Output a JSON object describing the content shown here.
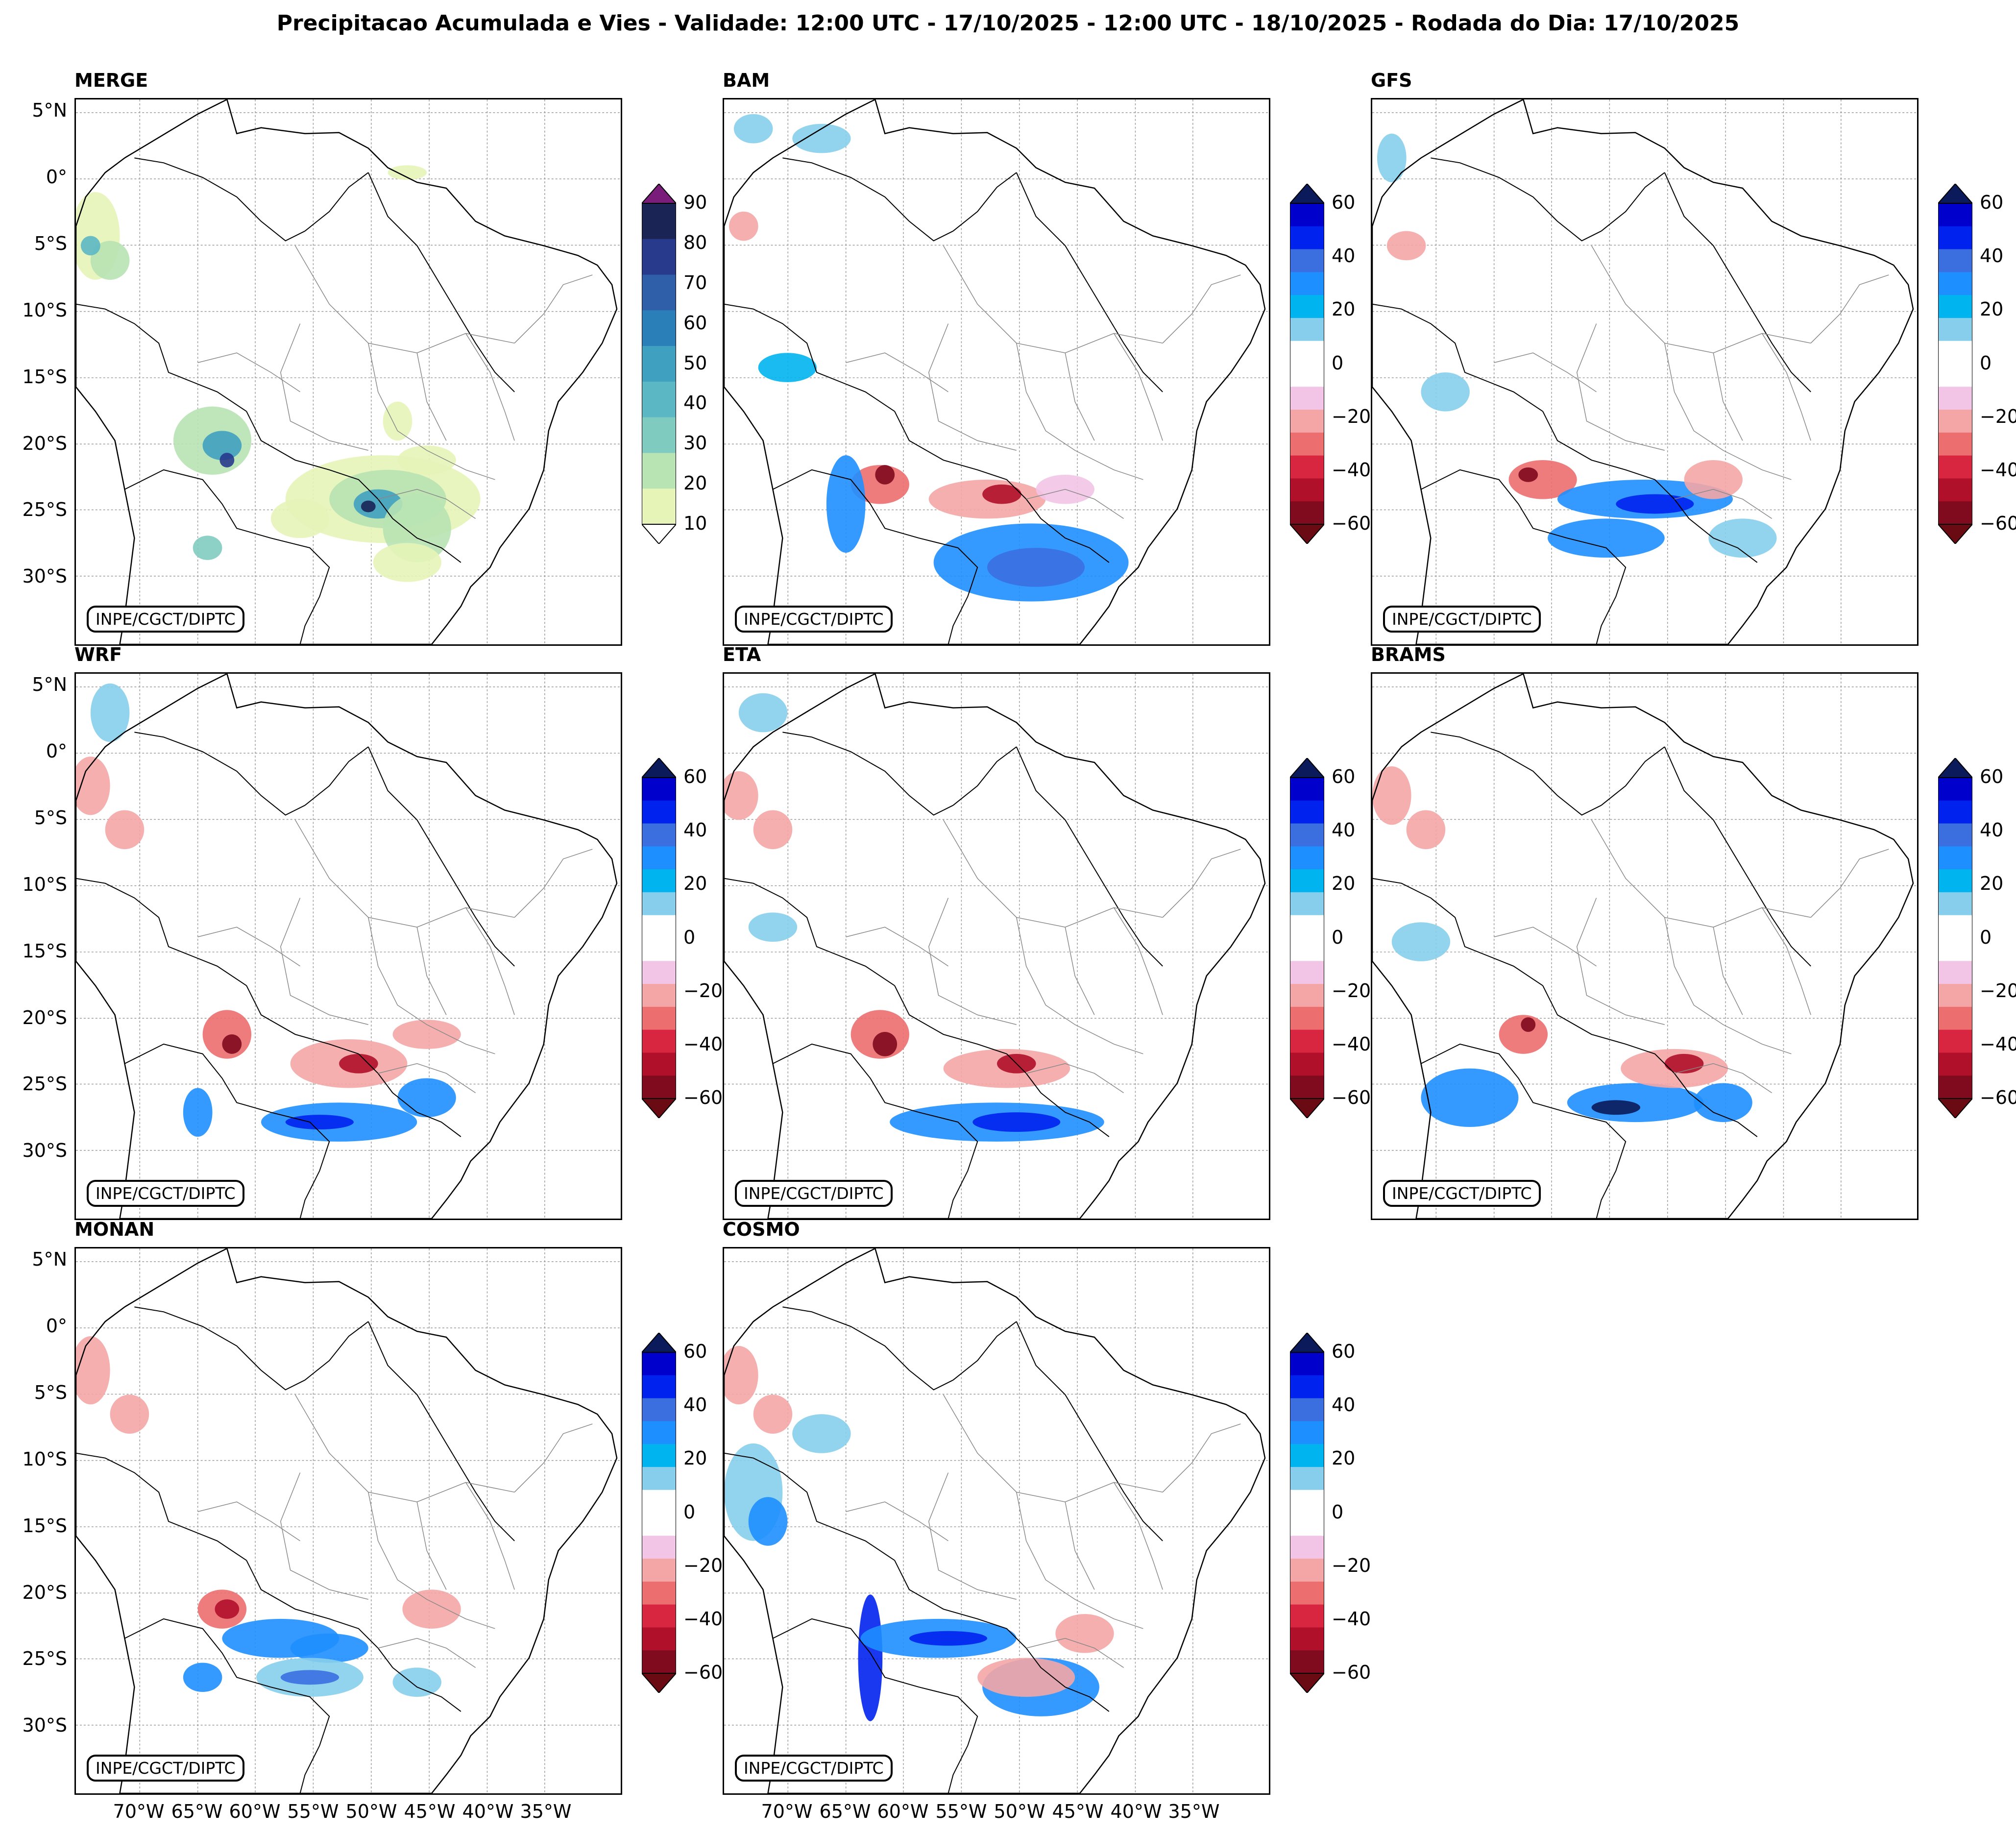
{
  "figure": {
    "title": "Precipitacao Acumulada e Vies - Validade: 12:00 UTC - 17/10/2025 - 12:00 UTC - 18/10/2025 - Rodada do Dia: 17/10/2025",
    "credit": "INPE/CGCT/DIPTC",
    "lat_ticks": [
      "5°N",
      "0°",
      "5°S",
      "10°S",
      "15°S",
      "20°S",
      "25°S",
      "30°S"
    ],
    "lon_ticks": [
      "70°W",
      "65°W",
      "60°W",
      "55°W",
      "50°W",
      "45°W",
      "40°W",
      "35°W"
    ],
    "merge_colorbar": {
      "ticks": [
        "90",
        "80",
        "70",
        "60",
        "50",
        "40",
        "30",
        "20",
        "10"
      ],
      "colors": [
        "#1a2556",
        "#273a8c",
        "#2e5fa8",
        "#2b7fb8",
        "#3fa0c0",
        "#5bb7c3",
        "#80cbc0",
        "#b8e3b3",
        "#e6f4b8"
      ],
      "over_color": "#7a1d7a"
    },
    "bias_colorbar": {
      "ticks": [
        "60",
        "40",
        "20",
        "0",
        "−20",
        "−40",
        "−60"
      ],
      "colors": [
        "#0000cc",
        "#0022ee",
        "#3b6fe0",
        "#1e8fff",
        "#00b4f0",
        "#86ceeb",
        "#ffffff",
        "#ffffff",
        "#f2c4e6",
        "#f4a6a6",
        "#ec6e6e",
        "#d82540",
        "#b0102a",
        "#800a1e"
      ],
      "over_color": "#0a1a5a",
      "under_color": "#6a0a12"
    },
    "panels": [
      {
        "name": "MERGE",
        "type": "precip"
      },
      {
        "name": "BAM",
        "type": "bias"
      },
      {
        "name": "GFS",
        "type": "bias"
      },
      {
        "name": "WRF",
        "type": "bias"
      },
      {
        "name": "ETA",
        "type": "bias"
      },
      {
        "name": "BRAMS",
        "type": "bias"
      },
      {
        "name": "MONAN",
        "type": "bias"
      },
      {
        "name": "COSMO",
        "type": "bias"
      }
    ]
  }
}
